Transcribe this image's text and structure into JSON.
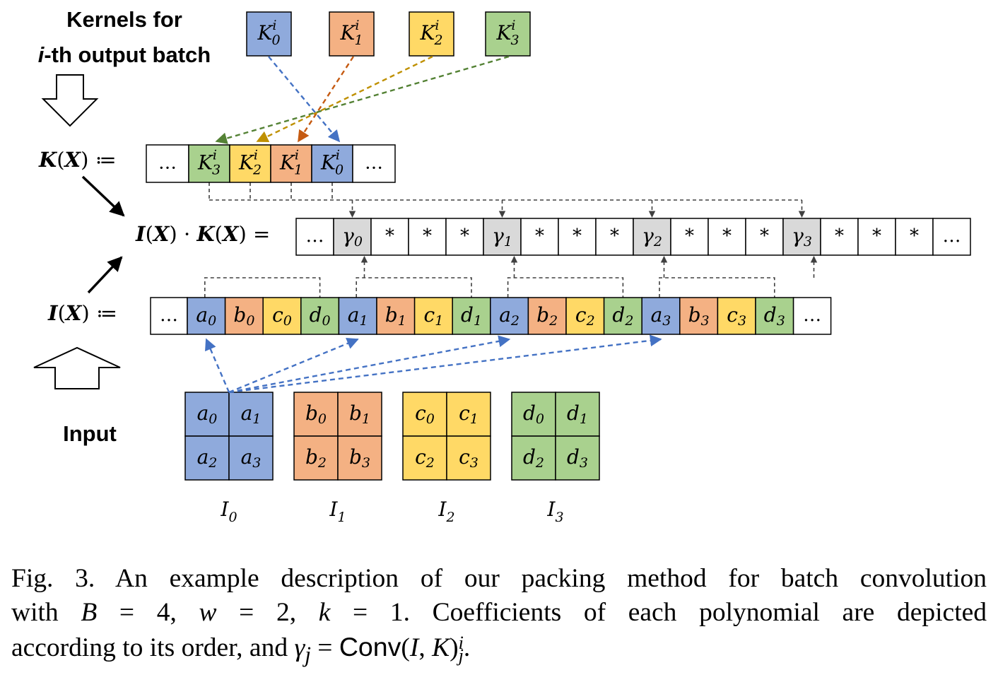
{
  "labels": {
    "kernels_line1": "Kernels for",
    "kernels_line2_i": "i",
    "kernels_line2_rest": "-th output batch",
    "input": "Input",
    "kx": "K",
    "ix": "I",
    "x": "X",
    "assign": "≔",
    "equals": "=",
    "cdot": "·"
  },
  "kernels": [
    {
      "name": "K",
      "sub": "0",
      "sup": "i",
      "color": "#8faadc",
      "arrow": "#4472c4"
    },
    {
      "name": "K",
      "sub": "1",
      "sup": "i",
      "color": "#f4b183",
      "arrow": "#c55a11"
    },
    {
      "name": "K",
      "sub": "2",
      "sup": "i",
      "color": "#ffd966",
      "arrow": "#bf9000"
    },
    {
      "name": "K",
      "sub": "3",
      "sup": "i",
      "color": "#a9d18e",
      "arrow": "#548235"
    }
  ],
  "kx_row": [
    {
      "t": "…"
    },
    {
      "name": "K",
      "sub": "3",
      "sup": "i"
    },
    {
      "name": "K",
      "sub": "2",
      "sup": "i"
    },
    {
      "name": "K",
      "sub": "1",
      "sup": "i"
    },
    {
      "name": "K",
      "sub": "0",
      "sup": "i"
    },
    {
      "t": "…"
    }
  ],
  "prod_row": [
    {
      "t": "…"
    },
    {
      "name": "γ",
      "sub": "0"
    },
    {
      "t": "*"
    },
    {
      "t": "*"
    },
    {
      "t": "*"
    },
    {
      "name": "γ",
      "sub": "1"
    },
    {
      "t": "*"
    },
    {
      "t": "*"
    },
    {
      "t": "*"
    },
    {
      "name": "γ",
      "sub": "2"
    },
    {
      "t": "*"
    },
    {
      "t": "*"
    },
    {
      "t": "*"
    },
    {
      "name": "γ",
      "sub": "3"
    },
    {
      "t": "*"
    },
    {
      "t": "*"
    },
    {
      "t": "*"
    },
    {
      "t": "…"
    }
  ],
  "ix_row": [
    {
      "t": "…"
    },
    {
      "name": "a",
      "sub": "0"
    },
    {
      "name": "b",
      "sub": "0"
    },
    {
      "name": "c",
      "sub": "0"
    },
    {
      "name": "d",
      "sub": "0"
    },
    {
      "name": "a",
      "sub": "1"
    },
    {
      "name": "b",
      "sub": "1"
    },
    {
      "name": "c",
      "sub": "1"
    },
    {
      "name": "d",
      "sub": "1"
    },
    {
      "name": "a",
      "sub": "2"
    },
    {
      "name": "b",
      "sub": "2"
    },
    {
      "name": "c",
      "sub": "2"
    },
    {
      "name": "d",
      "sub": "2"
    },
    {
      "name": "a",
      "sub": "3"
    },
    {
      "name": "b",
      "sub": "3"
    },
    {
      "name": "c",
      "sub": "3"
    },
    {
      "name": "d",
      "sub": "3"
    },
    {
      "t": "…"
    }
  ],
  "inputs": [
    {
      "letter": "a",
      "label": "I",
      "label_sub": "0",
      "color": "#8faadc"
    },
    {
      "letter": "b",
      "label": "I",
      "label_sub": "1",
      "color": "#f4b183"
    },
    {
      "letter": "c",
      "label": "I",
      "label_sub": "2",
      "color": "#ffd966"
    },
    {
      "letter": "d",
      "label": "I",
      "label_sub": "3",
      "color": "#a9d18e"
    }
  ],
  "colors": {
    "a": "#8faadc",
    "b": "#f4b183",
    "c": "#ffd966",
    "d": "#a9d18e",
    "gamma": "#d9d9d9",
    "blue_arrow": "#4472c4",
    "dark_dash": "#404040"
  },
  "caption": {
    "line1": "Fig. 3.   An example description of our packing method for batch convolution",
    "line2_a": "with ",
    "line2_B": "B",
    "line2_b": " = 4, ",
    "line2_w": "w",
    "line2_c": " = 2, ",
    "line2_k": "k",
    "line2_d": " = 1. Coefficients of each polynomial are depicted",
    "line3_a": "according to its order, and ",
    "line3_gamma": "γ",
    "line3_j": "j",
    "line3_b": " = ",
    "line3_conv": "Conv",
    "line3_c": "(",
    "line3_I": "I",
    "line3_d": ", ",
    "line3_K": "K",
    "line3_e": ")",
    "line3_sup": "i",
    "line3_sub": "j",
    "line3_f": "."
  }
}
